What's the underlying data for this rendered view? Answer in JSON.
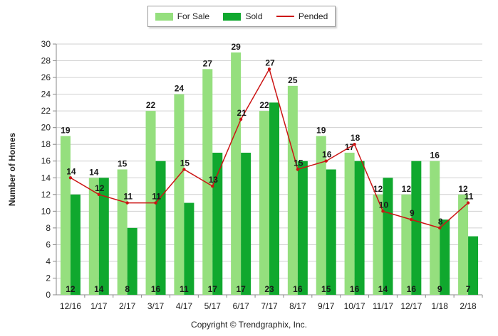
{
  "colors": {
    "for_sale": "#95df7e",
    "sold": "#10a82e",
    "pended": "#cc1414",
    "grid": "#d0d0d0"
  },
  "legend": {
    "for_sale": "For Sale",
    "sold": "Sold",
    "pended": "Pended"
  },
  "footer": {
    "copyright": "Copyright © Trendgraphix, Inc."
  },
  "chart_data": {
    "type": "bar",
    "ylabel": "Number of Homes",
    "xlabel": "",
    "ylim": [
      0,
      30
    ],
    "yticks": [
      0,
      2,
      4,
      6,
      8,
      10,
      12,
      14,
      16,
      18,
      20,
      22,
      24,
      26,
      28,
      30
    ],
    "grid": true,
    "legend_position": "top-center",
    "categories": [
      "12/16",
      "1/17",
      "2/17",
      "3/17",
      "4/17",
      "5/17",
      "6/17",
      "7/17",
      "8/17",
      "9/17",
      "10/17",
      "11/17",
      "12/17",
      "1/18",
      "2/18"
    ],
    "series": [
      {
        "name": "For Sale",
        "type": "bar",
        "values": [
          19,
          14,
          15,
          22,
          24,
          27,
          29,
          22,
          25,
          19,
          17,
          12,
          12,
          16,
          12
        ]
      },
      {
        "name": "Sold",
        "type": "bar",
        "values": [
          12,
          14,
          8,
          16,
          11,
          17,
          17,
          23,
          16,
          15,
          16,
          14,
          16,
          9,
          7
        ]
      },
      {
        "name": "Pended",
        "type": "line",
        "values": [
          14,
          12,
          11,
          11,
          15,
          13,
          21,
          27,
          15,
          16,
          18,
          10,
          9,
          8,
          11
        ]
      }
    ]
  }
}
